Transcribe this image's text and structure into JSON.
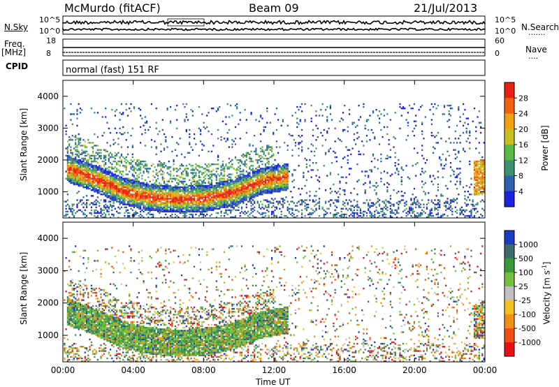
{
  "header": {
    "station": "McMurdo (fitACF)",
    "beam": "Beam 09",
    "date": "21/Jul/2013"
  },
  "sky_panel": {
    "left_label": "N.Sky",
    "left_tick_top": "10^5",
    "left_tick_bottom": "10^0",
    "right_label": "N.Search",
    "right_tick_top": "10^5",
    "right_tick_bottom": "10^0"
  },
  "freq_panel": {
    "left_label_top": "Freq.",
    "left_label_unit": "[MHz]",
    "left_tick_top": "18",
    "left_tick_bottom": "8",
    "right_label": "Nave",
    "right_tick_top": "60",
    "right_tick_bottom": "0"
  },
  "cpid": {
    "label": "CPID",
    "value": "normal (fast) 151 RF"
  },
  "x_axis": {
    "ticks": [
      "00:00",
      "04:00",
      "08:00",
      "12:00",
      "16:00",
      "20:00",
      "00:00"
    ],
    "label": "Time UT"
  },
  "chart_data": [
    {
      "type": "heatmap",
      "title": "",
      "xlabel": "Time UT",
      "ylabel": "Slant Range [km]",
      "x_ticks": [
        "00:00",
        "04:00",
        "08:00",
        "12:00",
        "16:00",
        "20:00",
        "00:00"
      ],
      "y_ticks": [
        "1000",
        "2000",
        "3000",
        "4000"
      ],
      "xlim_hours": [
        0,
        24
      ],
      "ylim_km": [
        180,
        4500
      ],
      "colorbar": {
        "label": "Power [dB]",
        "ticks": [
          "4",
          "8",
          "12",
          "16",
          "20",
          "24",
          "28"
        ],
        "colors": [
          "#1a24e0",
          "#2f5fb0",
          "#3e9070",
          "#58b848",
          "#c8c020",
          "#f0a010",
          "#f06010",
          "#e82010"
        ]
      },
      "main_echo_band": {
        "time_start_h": 0.2,
        "time_end_h": 12.8,
        "range_center_km": [
          1750,
          1450,
          1050,
          850,
          780,
          820,
          1000,
          1350,
          1500
        ],
        "peak_power_db": 30
      }
    },
    {
      "type": "heatmap",
      "title": "",
      "xlabel": "Time UT",
      "ylabel": "Slant Range [km]",
      "x_ticks": [
        "00:00",
        "04:00",
        "08:00",
        "12:00",
        "16:00",
        "20:00",
        "00:00"
      ],
      "y_ticks": [
        "1000",
        "2000",
        "3000",
        "4000"
      ],
      "xlim_hours": [
        0,
        24
      ],
      "ylim_km": [
        180,
        4500
      ],
      "colorbar": {
        "label": "Velocity [m s^-1]",
        "ticks": [
          "1000",
          "500",
          "100",
          "25",
          "-25",
          "-100",
          "-500",
          "-1000"
        ],
        "colors": [
          "#1a3cc0",
          "#3e6c6c",
          "#3a9a3a",
          "#70c040",
          "#c0c0c0",
          "#f0c020",
          "#f09018",
          "#f05010",
          "#e81010"
        ]
      },
      "main_echo_band": {
        "time_start_h": 0.2,
        "time_end_h": 12.8,
        "dominant_velocity_ms": 100
      }
    }
  ]
}
